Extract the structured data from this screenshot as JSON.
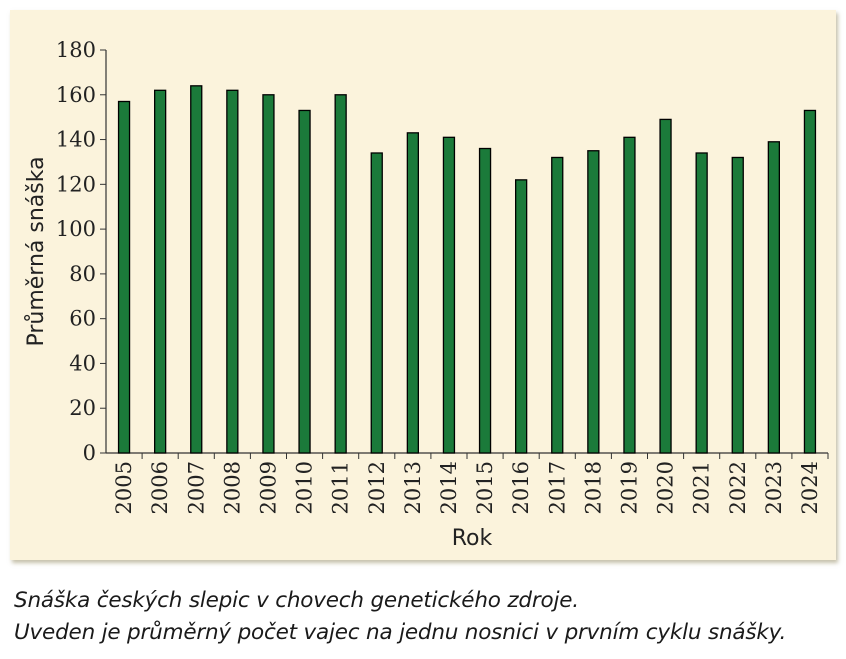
{
  "chart_data": {
    "type": "bar",
    "categories": [
      "2005",
      "2006",
      "2007",
      "2008",
      "2009",
      "2010",
      "2011",
      "2012",
      "2013",
      "2014",
      "2015",
      "2016",
      "2017",
      "2018",
      "2019",
      "2020",
      "2021",
      "2022",
      "2023",
      "2024"
    ],
    "series": [
      {
        "values": [
          157,
          162,
          164,
          162,
          160,
          153,
          160,
          134,
          143,
          141,
          136,
          122,
          132,
          135,
          141,
          149,
          134,
          132,
          139,
          153
        ]
      }
    ],
    "xlabel": "Rok",
    "ylabel": "Průměrná snáška",
    "ylim": [
      0,
      180
    ],
    "yticks": [
      0,
      20,
      40,
      60,
      80,
      100,
      120,
      140,
      160,
      180
    ],
    "grid": false,
    "colors": {
      "bar": "#1b7a3a",
      "bar_edge": "#000000",
      "panel": "#fbf3dc"
    }
  },
  "caption": {
    "line1": "Snáška českých slepic v chovech genetického zdroje.",
    "line2": "Uveden je průměrný počet vajec na jednu nosnici v prvním cyklu snášky."
  }
}
